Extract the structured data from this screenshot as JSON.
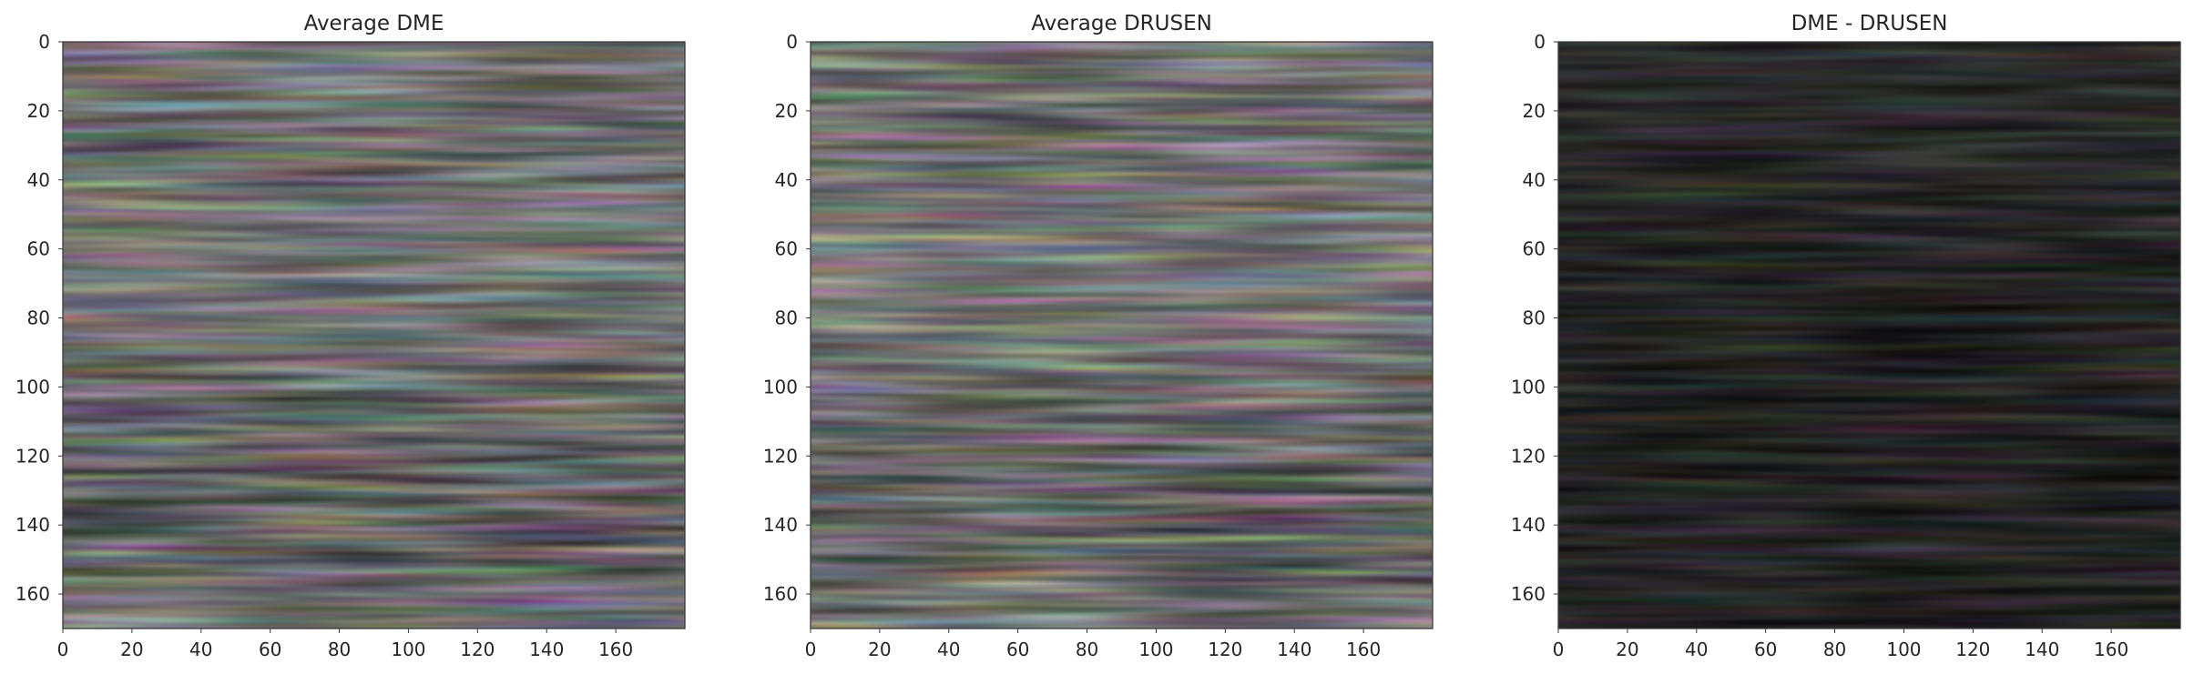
{
  "chart_data": [
    {
      "type": "heatmap",
      "title": "Average DME",
      "xlabel": "",
      "ylabel": "",
      "colormap": "gray",
      "xlim": [
        0,
        179
      ],
      "ylim": [
        170,
        0
      ],
      "x_ticks": [
        0,
        20,
        40,
        60,
        80,
        100,
        120,
        140,
        160
      ],
      "y_ticks": [
        0,
        20,
        40,
        60,
        80,
        100,
        120,
        140,
        160
      ],
      "grid": false,
      "row_profile": [
        {
          "row": 0,
          "gray": 62
        },
        {
          "row": 8,
          "gray": 56
        },
        {
          "row": 16,
          "gray": 48
        },
        {
          "row": 24,
          "gray": 40
        },
        {
          "row": 34,
          "gray": 43
        },
        {
          "row": 44,
          "gray": 52
        },
        {
          "row": 54,
          "gray": 60
        },
        {
          "row": 64,
          "gray": 62
        },
        {
          "row": 74,
          "gray": 58
        },
        {
          "row": 84,
          "gray": 53
        },
        {
          "row": 94,
          "gray": 45
        },
        {
          "row": 104,
          "gray": 36
        },
        {
          "row": 116,
          "gray": 29
        },
        {
          "row": 130,
          "gray": 25
        },
        {
          "row": 146,
          "gray": 24
        },
        {
          "row": 153,
          "gray": 27
        },
        {
          "row": 156,
          "gray": 40
        },
        {
          "row": 162,
          "gray": 52
        },
        {
          "row": 170,
          "gray": 46
        }
      ],
      "dark_spot": {
        "x": 90,
        "y": 38,
        "rx": 28,
        "ry": 14,
        "gray": 34
      }
    },
    {
      "type": "heatmap",
      "title": "Average DRUSEN",
      "xlabel": "",
      "ylabel": "",
      "colormap": "gray",
      "xlim": [
        0,
        179
      ],
      "ylim": [
        170,
        0
      ],
      "x_ticks": [
        0,
        20,
        40,
        60,
        80,
        100,
        120,
        140,
        160
      ],
      "y_ticks": [
        0,
        20,
        40,
        60,
        80,
        100,
        120,
        140,
        160
      ],
      "grid": false,
      "row_profile": [
        {
          "row": 0,
          "gray": 58
        },
        {
          "row": 8,
          "gray": 50
        },
        {
          "row": 18,
          "gray": 44
        },
        {
          "row": 28,
          "gray": 42
        },
        {
          "row": 38,
          "gray": 50
        },
        {
          "row": 48,
          "gray": 60
        },
        {
          "row": 58,
          "gray": 66
        },
        {
          "row": 68,
          "gray": 68
        },
        {
          "row": 78,
          "gray": 62
        },
        {
          "row": 88,
          "gray": 52
        },
        {
          "row": 98,
          "gray": 42
        },
        {
          "row": 110,
          "gray": 34
        },
        {
          "row": 124,
          "gray": 28
        },
        {
          "row": 140,
          "gray": 24
        },
        {
          "row": 150,
          "gray": 23
        },
        {
          "row": 156,
          "gray": 34
        },
        {
          "row": 162,
          "gray": 52
        },
        {
          "row": 170,
          "gray": 58
        }
      ],
      "dark_spot": {
        "x": 90,
        "y": 50,
        "rx": 18,
        "ry": 14,
        "gray": 36
      }
    },
    {
      "type": "heatmap",
      "title": "DME - DRUSEN",
      "xlabel": "",
      "ylabel": "",
      "colormap": "gray",
      "xlim": [
        0,
        179
      ],
      "ylim": [
        170,
        0
      ],
      "x_ticks": [
        0,
        20,
        40,
        60,
        80,
        100,
        120,
        140,
        160
      ],
      "y_ticks": [
        0,
        20,
        40,
        60,
        80,
        100,
        120,
        140,
        160
      ],
      "grid": false,
      "row_profile": [
        {
          "row": 0,
          "gray": 12
        },
        {
          "row": 20,
          "gray": 11
        },
        {
          "row": 40,
          "gray": 9
        },
        {
          "row": 60,
          "gray": 3
        },
        {
          "row": 80,
          "gray": 1
        },
        {
          "row": 100,
          "gray": 3
        },
        {
          "row": 120,
          "gray": 1
        },
        {
          "row": 140,
          "gray": 3
        },
        {
          "row": 160,
          "gray": 5
        },
        {
          "row": 170,
          "gray": 2
        }
      ],
      "dark_spot": null
    }
  ]
}
